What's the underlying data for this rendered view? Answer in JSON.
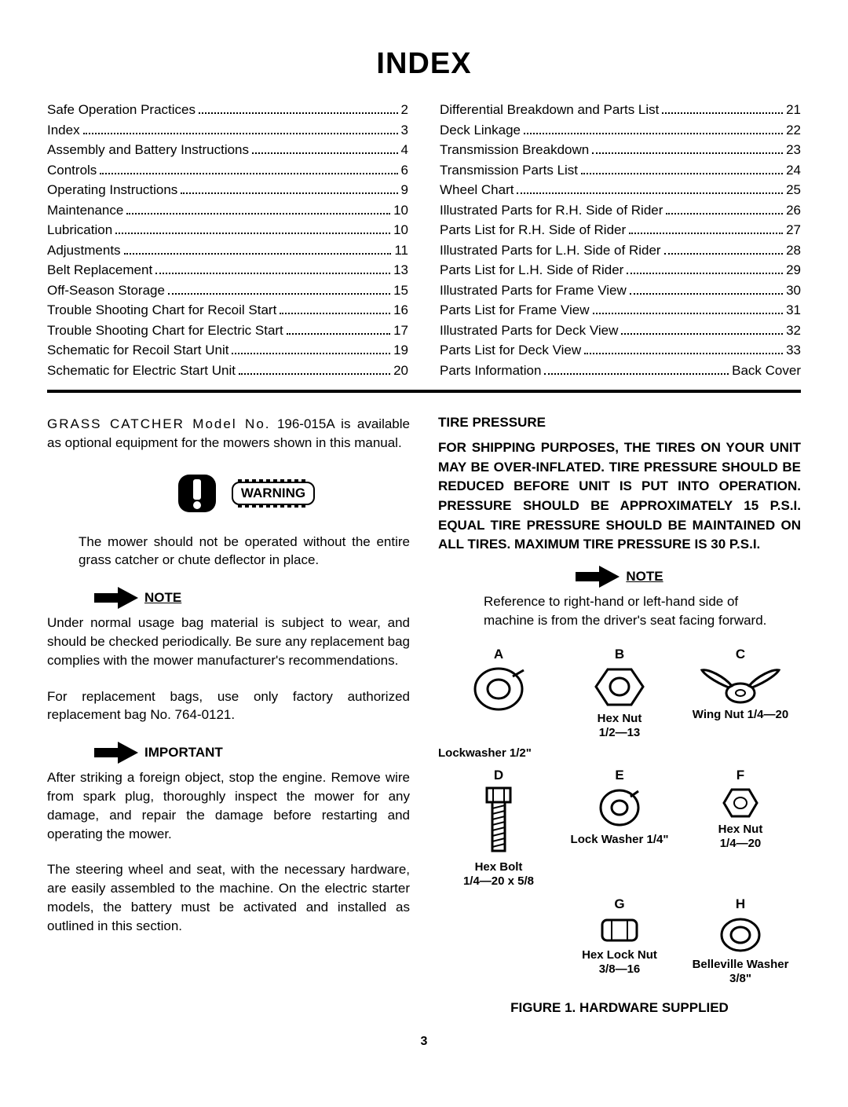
{
  "title": "INDEX",
  "index_left": [
    {
      "label": "Safe Operation Practices",
      "page": "2"
    },
    {
      "label": "Index",
      "page": "3"
    },
    {
      "label": "Assembly and Battery Instructions",
      "page": "4"
    },
    {
      "label": "Controls",
      "page": "6"
    },
    {
      "label": "Operating Instructions",
      "page": "9"
    },
    {
      "label": "Maintenance",
      "page": "10"
    },
    {
      "label": "Lubrication",
      "page": "10"
    },
    {
      "label": "Adjustments",
      "page": "11"
    },
    {
      "label": "Belt Replacement",
      "page": "13"
    },
    {
      "label": "Off-Season Storage",
      "page": "15"
    },
    {
      "label": "Trouble Shooting Chart for Recoil Start",
      "page": "16"
    },
    {
      "label": "Trouble Shooting Chart for Electric Start",
      "page": "17"
    },
    {
      "label": "Schematic for Recoil Start Unit",
      "page": "19"
    },
    {
      "label": "Schematic for Electric Start Unit",
      "page": "20"
    }
  ],
  "index_right": [
    {
      "label": "Differential Breakdown and Parts List",
      "page": "21"
    },
    {
      "label": "Deck Linkage",
      "page": "22"
    },
    {
      "label": "Transmission Breakdown",
      "page": "23"
    },
    {
      "label": "Transmission Parts List",
      "page": "24"
    },
    {
      "label": "Wheel Chart",
      "page": "25"
    },
    {
      "label": "Illustrated Parts for R.H. Side of Rider",
      "page": "26"
    },
    {
      "label": "Parts List for R.H. Side of Rider",
      "page": "27"
    },
    {
      "label": "Illustrated Parts for L.H. Side of Rider",
      "page": "28"
    },
    {
      "label": "Parts List for L.H. Side of Rider",
      "page": "29"
    },
    {
      "label": "Illustrated Parts for Frame View",
      "page": "30"
    },
    {
      "label": "Parts List for Frame View",
      "page": "31"
    },
    {
      "label": "Illustrated Parts for Deck View",
      "page": "32"
    },
    {
      "label": "Parts List for Deck View",
      "page": "33"
    },
    {
      "label": "Parts Information",
      "page": "Back Cover"
    }
  ],
  "left_column": {
    "grass_catcher": "GRASS CATCHER Model No. 196-015A is available as optional equipment for the mowers shown in this manual.",
    "warning_label": "WARNING",
    "warning_text": "The mower should not be operated without the entire grass catcher or chute deflector in place.",
    "note_label": "NOTE",
    "note1_p1": "Under normal usage bag material is subject to wear, and should be checked periodically. Be sure any replacement bag complies with the mower manufacturer's recommendations.",
    "note1_p2": "For replacement bags, use only factory authorized replacement bag No. 764-0121.",
    "important_label": "IMPORTANT",
    "important_text": "After striking a foreign object, stop the engine. Remove wire from spark plug, thoroughly inspect the mower for any damage, and repair the damage before restarting and operating the mower.",
    "steering_text": "The steering wheel and seat, with the necessary hardware, are easily assembled to the machine. On the electric starter models, the battery must be activated and installed as outlined in this section."
  },
  "right_column": {
    "tire_title": "TIRE PRESSURE",
    "tire_body": "FOR SHIPPING PURPOSES, THE TIRES ON YOUR UNIT MAY BE OVER-INFLATED. TIRE PRESSURE SHOULD BE REDUCED BEFORE UNIT IS PUT INTO OPERATION. PRESSURE SHOULD BE APPROXIMATELY 15 P.S.I. EQUAL TIRE PRESSURE SHOULD BE MAINTAINED ON ALL TIRES. MAXIMUM TIRE PRESSURE IS 30 P.S.I.",
    "note_label": "NOTE",
    "note_text": "Reference to right-hand or left-hand side of machine is from the driver's seat facing forward.",
    "hardware": {
      "A": {
        "letter": "A",
        "label": ""
      },
      "B": {
        "letter": "B",
        "label": "Hex Nut",
        "spec": "1/2—13"
      },
      "C": {
        "letter": "C",
        "label": "Wing Nut 1/4—20"
      },
      "lockwasher_row": "Lockwasher 1/2\"",
      "D": {
        "letter": "D",
        "label": "Hex Bolt",
        "spec": "1/4—20 x 5/8"
      },
      "E": {
        "letter": "E",
        "label": "Lock Washer 1/4\""
      },
      "F": {
        "letter": "F",
        "label": "Hex Nut",
        "spec": "1/4—20"
      },
      "G": {
        "letter": "G",
        "label": "Hex Lock Nut",
        "spec": "3/8—16"
      },
      "H": {
        "letter": "H",
        "label": "Belleville Washer 3/8\""
      }
    },
    "figure_caption": "FIGURE 1. HARDWARE SUPPLIED"
  },
  "page_number": "3"
}
